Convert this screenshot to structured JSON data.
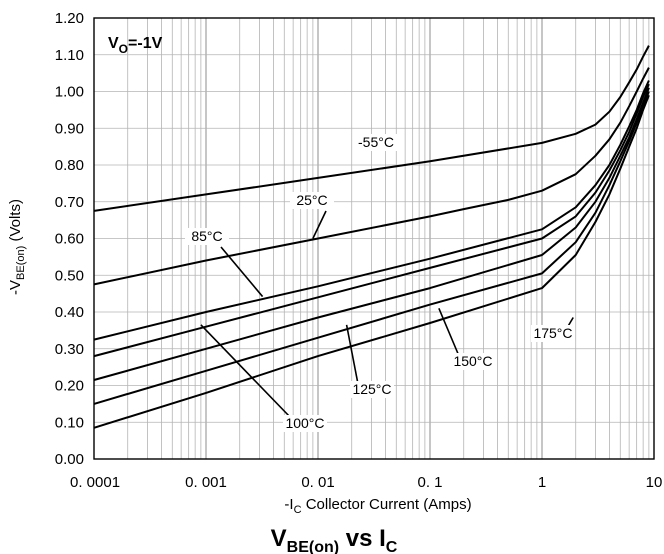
{
  "chart_data": {
    "type": "line",
    "title": "VBE(on) vs IC",
    "title_parts": {
      "main": "V",
      "sub": "BE(on)",
      "mid": " vs I",
      "sub2": "C"
    },
    "xlabel": "-IC Collector  Current  (Amps)",
    "xlabel_parts": {
      "pre": "-I",
      "sub": "C",
      "post": " Collector  Current  (Amps)"
    },
    "ylabel": "-VBE(on) (Volts)",
    "ylabel_parts": {
      "pre": "-V",
      "sub": "BE(on)",
      "post": " (Volts)"
    },
    "x_scale": "log",
    "xlim": [
      0.0001,
      10
    ],
    "ylim": [
      0.0,
      1.2
    ],
    "x_ticks": [
      0.0001,
      0.001,
      0.01,
      0.1,
      1,
      10
    ],
    "x_tick_labels": [
      "0. 0001",
      "0. 001",
      "0. 01",
      "0. 1",
      "1",
      "10"
    ],
    "y_ticks": [
      0.0,
      0.1,
      0.2,
      0.3,
      0.4,
      0.5,
      0.6,
      0.7,
      0.8,
      0.9,
      1.0,
      1.1,
      1.2
    ],
    "y_tick_labels": [
      "0.00",
      "0.10",
      "0.20",
      "0.30",
      "0.40",
      "0.50",
      "0.60",
      "0.70",
      "0.80",
      "0.90",
      "1.00",
      "1.10",
      "1.20"
    ],
    "grid": true,
    "condition_note": {
      "pre": "V",
      "sub": "O",
      "post": "=-1V"
    },
    "series": [
      {
        "name": "-55°C",
        "x": [
          0.0001,
          0.001,
          0.01,
          0.1,
          1,
          2,
          3,
          4,
          5,
          6,
          7,
          8,
          9
        ],
        "y": [
          0.675,
          0.72,
          0.765,
          0.81,
          0.86,
          0.885,
          0.91,
          0.945,
          0.985,
          1.025,
          1.06,
          1.095,
          1.125
        ]
      },
      {
        "name": "25°C",
        "x": [
          0.0001,
          0.001,
          0.01,
          0.1,
          0.2,
          0.5,
          1,
          2,
          3,
          4,
          5,
          6,
          7,
          8,
          9
        ],
        "y": [
          0.475,
          0.54,
          0.6,
          0.66,
          0.68,
          0.705,
          0.73,
          0.775,
          0.825,
          0.87,
          0.915,
          0.96,
          1.0,
          1.035,
          1.065
        ]
      },
      {
        "name": "85°C",
        "x": [
          0.0001,
          0.001,
          0.01,
          0.1,
          1,
          2,
          3,
          4,
          5,
          6,
          7,
          8,
          9
        ],
        "y": [
          0.325,
          0.4,
          0.47,
          0.545,
          0.625,
          0.685,
          0.745,
          0.8,
          0.855,
          0.905,
          0.95,
          0.995,
          1.03
        ]
      },
      {
        "name": "100°C",
        "x": [
          0.0001,
          0.001,
          0.01,
          0.1,
          1,
          2,
          3,
          4,
          5,
          6,
          7,
          8,
          9
        ],
        "y": [
          0.28,
          0.36,
          0.44,
          0.52,
          0.6,
          0.66,
          0.725,
          0.785,
          0.84,
          0.89,
          0.94,
          0.985,
          1.02
        ]
      },
      {
        "name": "125°C",
        "x": [
          0.0001,
          0.001,
          0.01,
          0.1,
          1,
          2,
          3,
          4,
          5,
          6,
          7,
          8,
          9
        ],
        "y": [
          0.215,
          0.3,
          0.385,
          0.465,
          0.555,
          0.63,
          0.7,
          0.765,
          0.825,
          0.875,
          0.925,
          0.97,
          1.01
        ]
      },
      {
        "name": "150°C",
        "x": [
          0.0001,
          0.001,
          0.01,
          0.1,
          1,
          2,
          3,
          4,
          5,
          6,
          7,
          8,
          9
        ],
        "y": [
          0.15,
          0.24,
          0.33,
          0.42,
          0.505,
          0.59,
          0.67,
          0.745,
          0.81,
          0.865,
          0.915,
          0.96,
          1.0
        ]
      },
      {
        "name": "175°C",
        "x": [
          0.0001,
          0.001,
          0.01,
          0.1,
          1,
          2,
          3,
          4,
          5,
          6,
          7,
          8,
          9
        ],
        "y": [
          0.085,
          0.18,
          0.28,
          0.37,
          0.465,
          0.555,
          0.645,
          0.72,
          0.79,
          0.85,
          0.9,
          0.95,
          0.99
        ]
      }
    ],
    "annotations": [
      {
        "text": "-55°C",
        "series": "-55°C"
      },
      {
        "text": "25°C",
        "series": "25°C"
      },
      {
        "text": "85°C",
        "series": "85°C"
      },
      {
        "text": "100°C",
        "series": "100°C"
      },
      {
        "text": "125°C",
        "series": "125°C"
      },
      {
        "text": "150°C",
        "series": "150°C"
      },
      {
        "text": "175°C",
        "series": "175°C"
      }
    ]
  }
}
